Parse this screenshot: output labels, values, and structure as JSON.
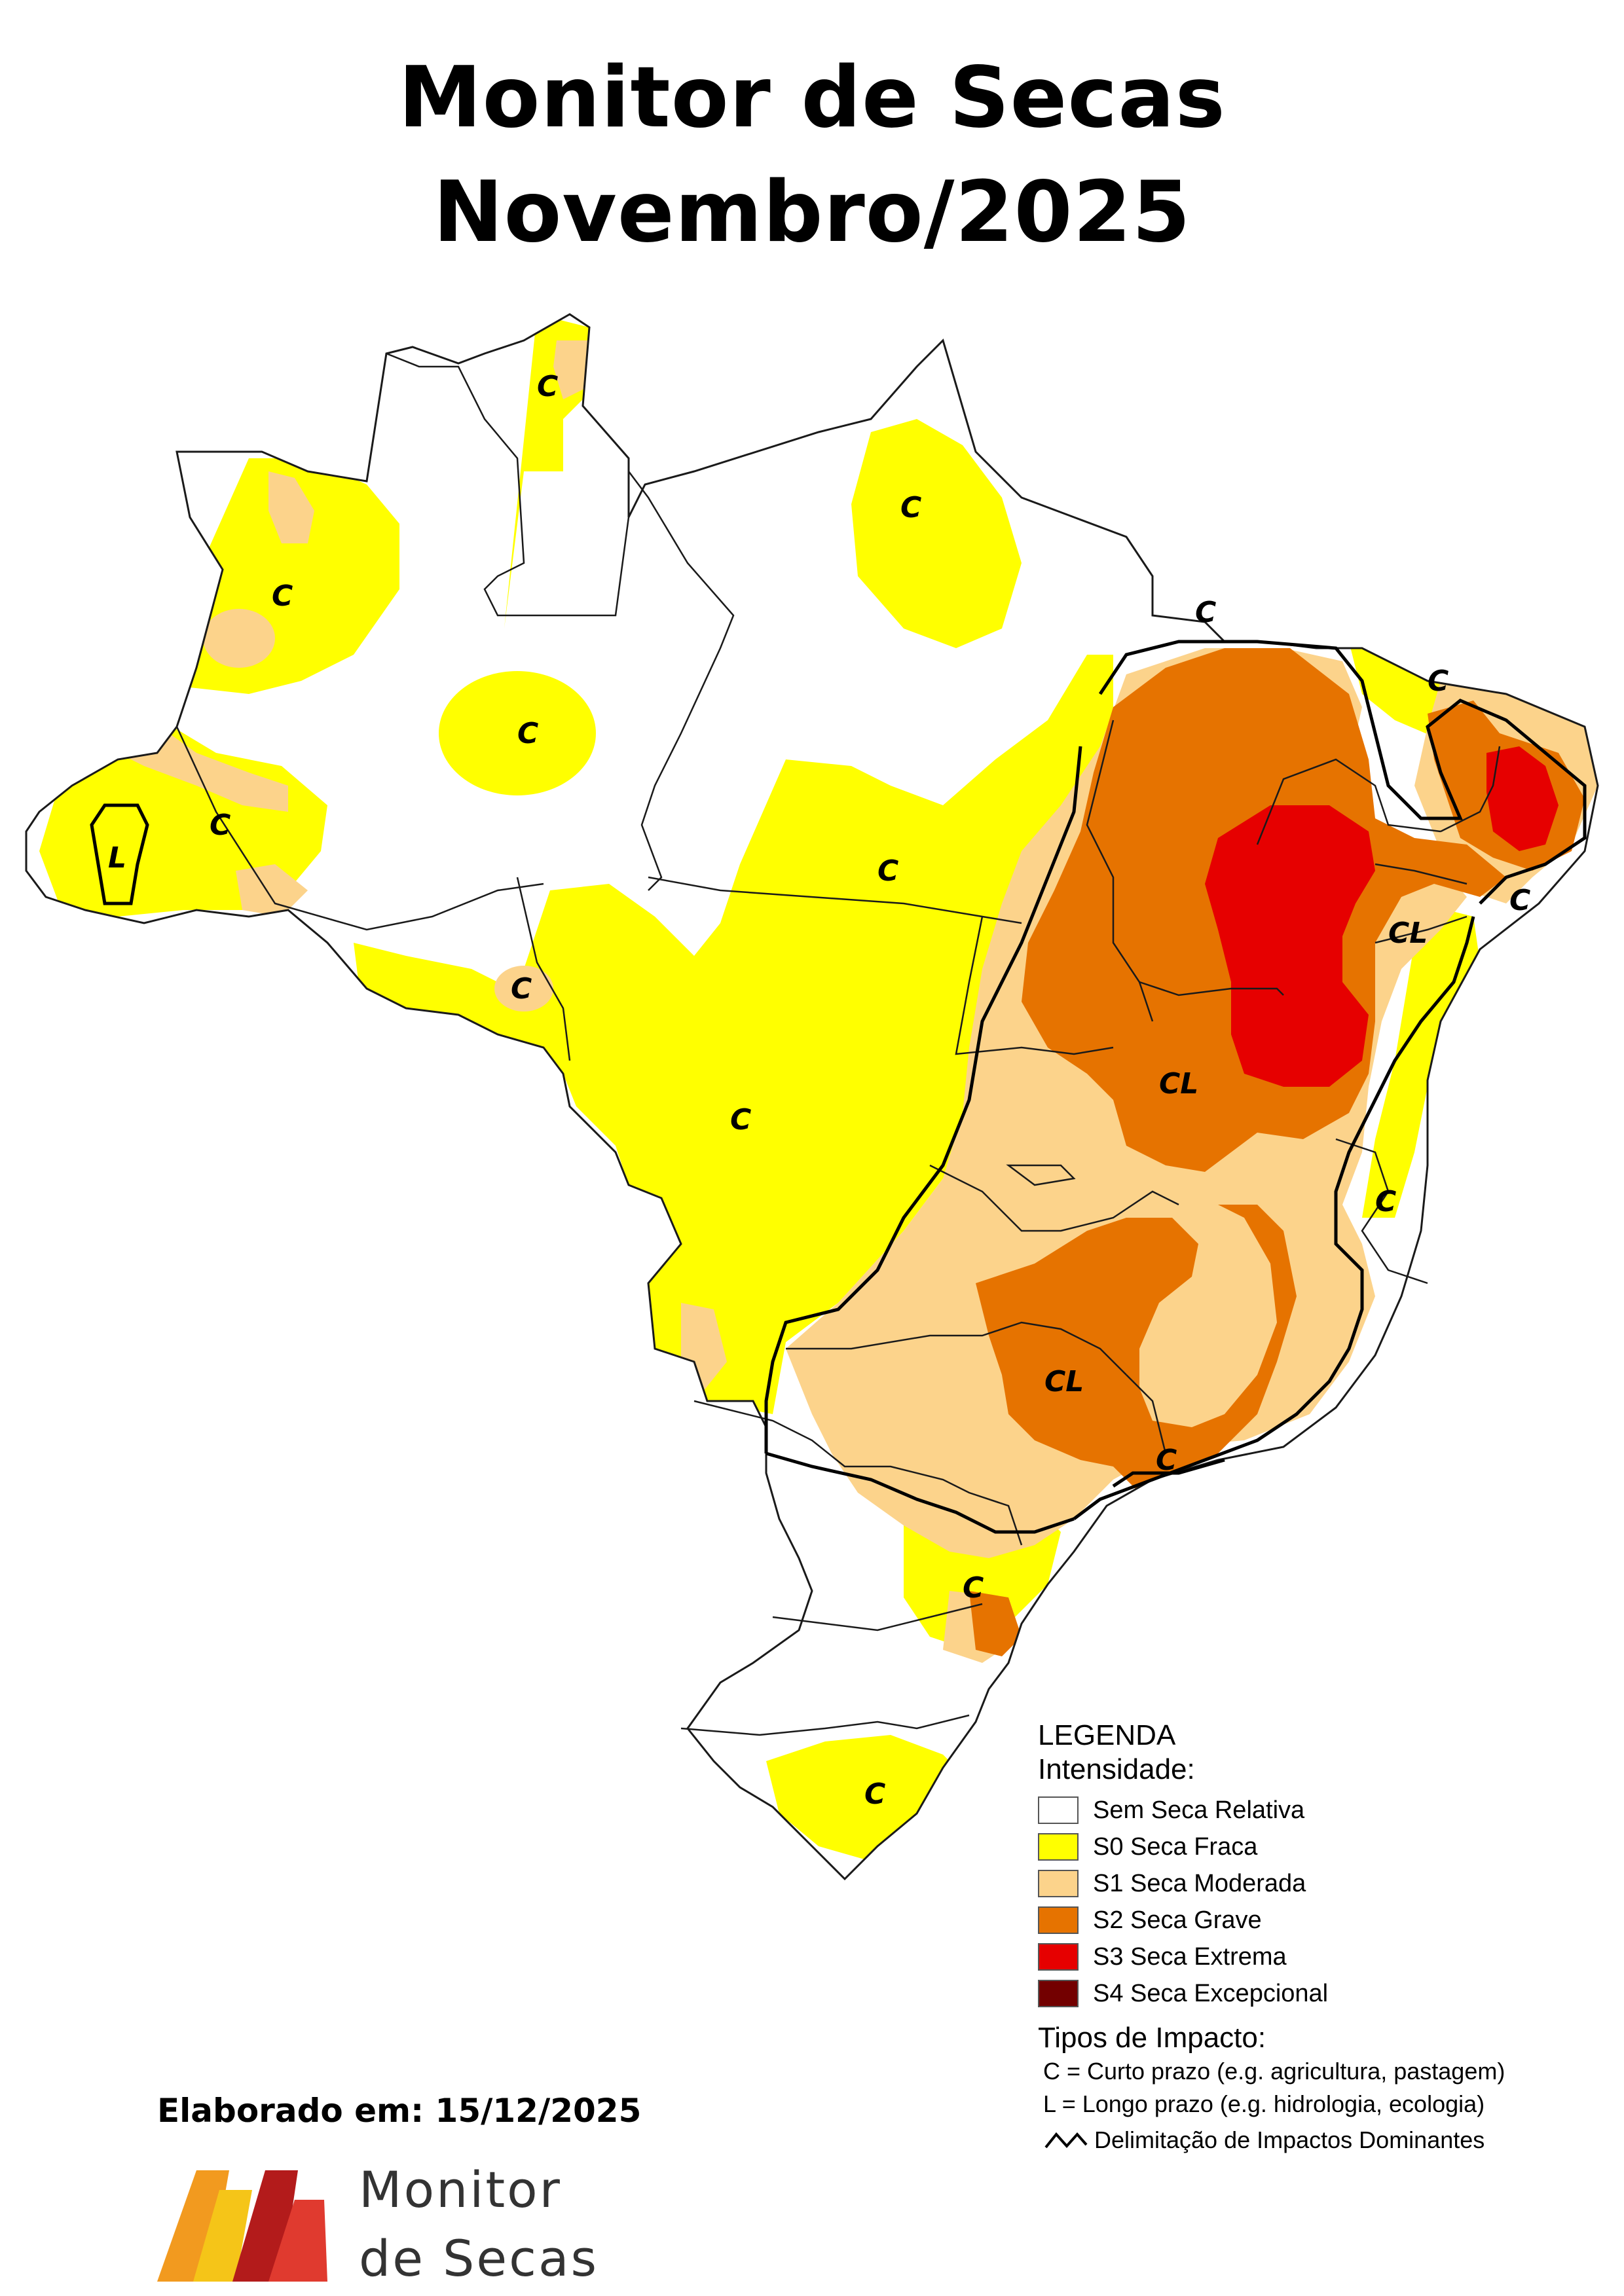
{
  "title": {
    "line1": "Monitor de Secas",
    "line2": "Novembro/2025"
  },
  "colors": {
    "S0": "#ffff00",
    "S1": "#fcd38b",
    "S2": "#e67300",
    "S3": "#e60000",
    "S4": "#730000",
    "none": "#ffffff",
    "border": "#1a1a1a"
  },
  "legend": {
    "heading": "LEGENDA",
    "subheading": "Intensidade:",
    "items": [
      {
        "label": "Sem Seca Relativa",
        "color": "#ffffff"
      },
      {
        "label": "S0 Seca Fraca",
        "color": "#ffff00"
      },
      {
        "label": "S1 Seca Moderada",
        "color": "#fcd38b"
      },
      {
        "label": "S2 Seca Grave",
        "color": "#e67300"
      },
      {
        "label": "S3 Seca Extrema",
        "color": "#e60000"
      },
      {
        "label": "S4 Seca Excepcional",
        "color": "#730000"
      }
    ],
    "impact_heading": "Tipos de Impacto:",
    "impact_c": "C = Curto prazo (e.g. agricultura, pastagem)",
    "impact_l": "L = Longo prazo (e.g. hidrologia, ecologia)",
    "dominant": "Delimitação de Impactos Dominantes"
  },
  "map_labels": [
    {
      "text": "C"
    },
    {
      "text": "C"
    },
    {
      "text": "C"
    },
    {
      "text": "C"
    },
    {
      "text": "C"
    },
    {
      "text": "L"
    },
    {
      "text": "C"
    },
    {
      "text": "C"
    },
    {
      "text": "C"
    },
    {
      "text": "C"
    },
    {
      "text": "CL"
    },
    {
      "text": "CL"
    },
    {
      "text": "C"
    },
    {
      "text": "C"
    },
    {
      "text": "CL"
    },
    {
      "text": "C"
    },
    {
      "text": "C"
    },
    {
      "text": "C"
    },
    {
      "text": "C"
    }
  ],
  "footer": {
    "elaborado": "Elaborado em: 15/12/2025",
    "brand_line1": "Monitor",
    "brand_line2": "de Secas"
  }
}
